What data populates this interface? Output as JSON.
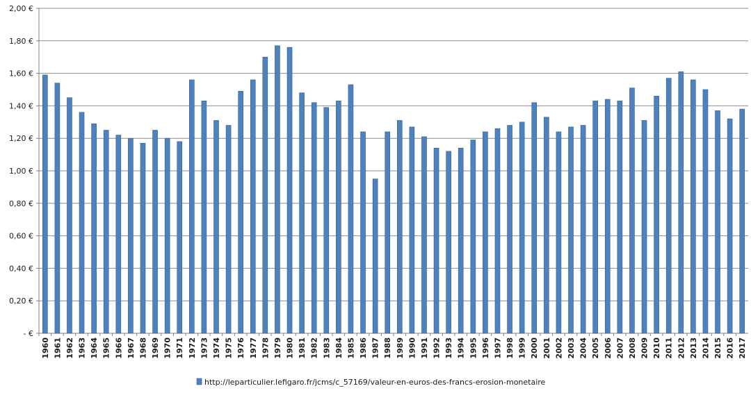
{
  "chart_data": {
    "type": "bar",
    "categories": [
      "1960",
      "1961",
      "1962",
      "1963",
      "1964",
      "1965",
      "1966",
      "1967",
      "1968",
      "1969",
      "1970",
      "1971",
      "1972",
      "1973",
      "1974",
      "1975",
      "1976",
      "1977",
      "1978",
      "1979",
      "1980",
      "1981",
      "1982",
      "1983",
      "1984",
      "1985",
      "1986",
      "1987",
      "1988",
      "1989",
      "1990",
      "1991",
      "1992",
      "1993",
      "1994",
      "1995",
      "1996",
      "1997",
      "1998",
      "1999",
      "2000",
      "2001",
      "2002",
      "2003",
      "2004",
      "2005",
      "2006",
      "2007",
      "2008",
      "2009",
      "2010",
      "2011",
      "2012",
      "2013",
      "2014",
      "2015",
      "2016",
      "2017"
    ],
    "series": [
      {
        "name": "http://leparticulier.lefigaro.fr/jcms/c_57169/valeur-en-euros-des-francs-erosion-monetaire",
        "values": [
          1.59,
          1.54,
          1.45,
          1.36,
          1.29,
          1.25,
          1.22,
          1.2,
          1.17,
          1.25,
          1.2,
          1.18,
          1.56,
          1.43,
          1.31,
          1.28,
          1.49,
          1.56,
          1.7,
          1.77,
          1.76,
          1.48,
          1.42,
          1.39,
          1.43,
          1.53,
          1.24,
          0.95,
          1.24,
          1.31,
          1.27,
          1.21,
          1.14,
          1.12,
          1.14,
          1.19,
          1.24,
          1.26,
          1.28,
          1.3,
          1.42,
          1.33,
          1.24,
          1.27,
          1.28,
          1.43,
          1.44,
          1.43,
          1.51,
          1.31,
          1.46,
          1.57,
          1.61,
          1.56,
          1.5,
          1.37,
          1.32,
          1.38
        ]
      }
    ],
    "y_tick_labels": [
      "-  €",
      "0,20 €",
      "0,40 €",
      "0,60 €",
      "0,80 €",
      "1,00 €",
      "1,20 €",
      "1,40 €",
      "1,60 €",
      "1,80 €",
      "2,00 €"
    ],
    "ylim": [
      0,
      2.0
    ],
    "y_step": 0.2,
    "grid": true,
    "legend_position": "bottom",
    "bar_color": "#4f81bd",
    "bar_edge_color": "#2f5f96"
  }
}
